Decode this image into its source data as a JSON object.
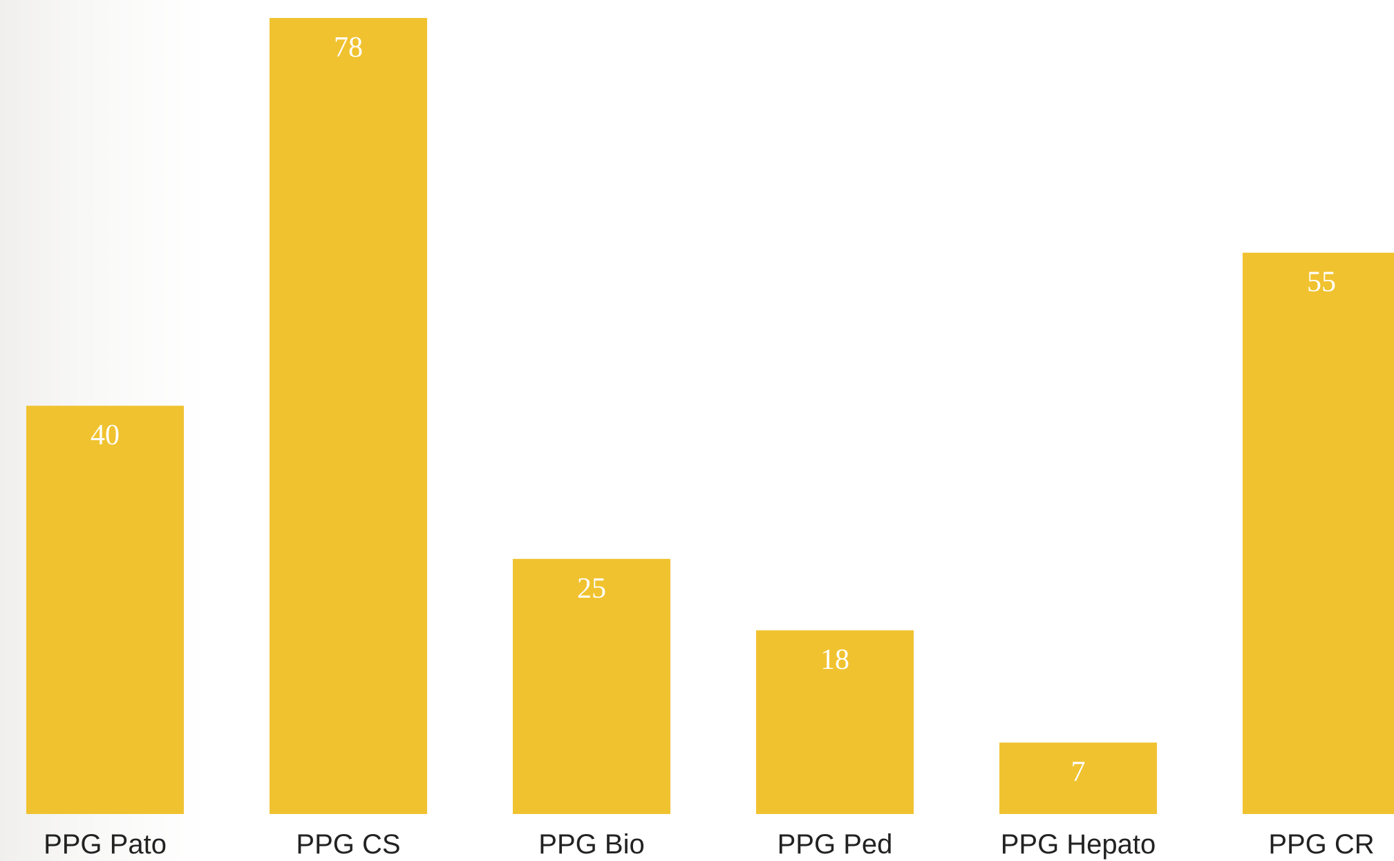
{
  "chart_data": {
    "type": "bar",
    "categories": [
      "PPG Pato",
      "PPG CS",
      "PPG Bio",
      "PPG Ped",
      "PPG Hepato",
      "PPG CR"
    ],
    "values": [
      40,
      78,
      25,
      18,
      7,
      55
    ],
    "title": "",
    "xlabel": "",
    "ylabel": "",
    "ylim": [
      0,
      78
    ],
    "grid": false,
    "data_labels": true,
    "bar_color": "#f0c22f",
    "label_color": "#ffffff",
    "tick_color": "#222222"
  }
}
